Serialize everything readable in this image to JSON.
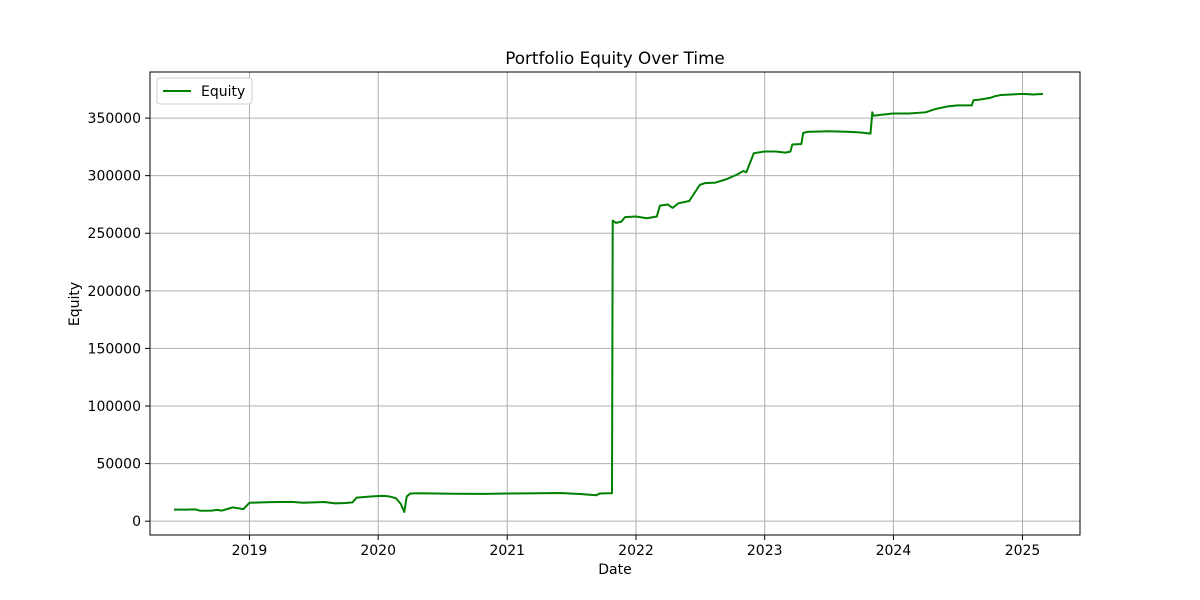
{
  "chart_data": {
    "type": "line",
    "title": "Portfolio Equity Over Time",
    "xlabel": "Date",
    "ylabel": "Equity",
    "xlim": [
      "2018-03-25",
      "2025-06-13"
    ],
    "ylim": [
      -12000,
      390000
    ],
    "xticks": [
      {
        "date": "2019-01-01",
        "label": "2019"
      },
      {
        "date": "2020-01-01",
        "label": "2020"
      },
      {
        "date": "2021-01-01",
        "label": "2021"
      },
      {
        "date": "2022-01-01",
        "label": "2022"
      },
      {
        "date": "2023-01-01",
        "label": "2023"
      },
      {
        "date": "2024-01-01",
        "label": "2024"
      },
      {
        "date": "2025-01-01",
        "label": "2025"
      }
    ],
    "yticks": [
      0,
      50000,
      100000,
      150000,
      200000,
      250000,
      300000,
      350000
    ],
    "grid": true,
    "legend": {
      "position": "top-left",
      "entries": [
        "Equity"
      ]
    },
    "series": [
      {
        "name": "Equity",
        "color": "#008000",
        "x": [
          "2018-06-01",
          "2018-07-01",
          "2018-08-01",
          "2018-08-15",
          "2018-09-15",
          "2018-10-01",
          "2018-10-15",
          "2018-11-15",
          "2018-12-15",
          "2019-01-01",
          "2019-03-01",
          "2019-05-01",
          "2019-06-01",
          "2019-08-01",
          "2019-09-01",
          "2019-10-01",
          "2019-10-20",
          "2019-11-01",
          "2019-11-15",
          "2019-12-15",
          "2020-01-15",
          "2020-02-01",
          "2020-02-20",
          "2020-03-05",
          "2020-03-15",
          "2020-03-22",
          "2020-04-01",
          "2020-05-01",
          "2020-08-01",
          "2020-11-01",
          "2021-01-01",
          "2021-04-01",
          "2021-06-01",
          "2021-08-01",
          "2021-09-10",
          "2021-09-20",
          "2021-10-15",
          "2021-10-25",
          "2021-10-27",
          "2021-11-05",
          "2021-11-20",
          "2021-12-01",
          "2022-01-01",
          "2022-02-01",
          "2022-03-01",
          "2022-03-10",
          "2022-04-01",
          "2022-04-15",
          "2022-05-01",
          "2022-06-01",
          "2022-07-01",
          "2022-07-15",
          "2022-08-15",
          "2022-09-15",
          "2022-10-15",
          "2022-11-01",
          "2022-11-10",
          "2022-12-01",
          "2023-01-01",
          "2023-02-01",
          "2023-03-01",
          "2023-03-15",
          "2023-03-20",
          "2023-04-15",
          "2023-04-20",
          "2023-05-01",
          "2023-07-01",
          "2023-09-01",
          "2023-10-01",
          "2023-10-28",
          "2023-11-02",
          "2023-11-05",
          "2023-12-01",
          "2024-01-01",
          "2024-02-15",
          "2024-04-01",
          "2024-05-01",
          "2024-06-01",
          "2024-07-01",
          "2024-08-10",
          "2024-08-15",
          "2024-09-01",
          "2024-10-01",
          "2024-10-15",
          "2024-11-01",
          "2024-12-01",
          "2025-01-01",
          "2025-02-01",
          "2025-02-28"
        ],
        "values": [
          10000,
          10000,
          10200,
          9000,
          9200,
          9800,
          9200,
          12000,
          10500,
          16000,
          16500,
          16800,
          16000,
          16700,
          15500,
          15800,
          16300,
          20500,
          20800,
          21500,
          22000,
          21500,
          20000,
          15000,
          8000,
          21500,
          24000,
          24200,
          23800,
          23700,
          24000,
          24200,
          24500,
          23500,
          22500,
          24000,
          24300,
          24300,
          261000,
          259000,
          260000,
          264000,
          264500,
          263000,
          264500,
          274000,
          275000,
          272000,
          276000,
          278000,
          292000,
          293500,
          294000,
          297000,
          301000,
          304000,
          303000,
          319500,
          321000,
          321000,
          320000,
          321000,
          327000,
          327500,
          337000,
          338000,
          338500,
          338000,
          337500,
          336500,
          355000,
          352000,
          353000,
          354000,
          354000,
          355000,
          358000,
          360000,
          361000,
          361000,
          365500,
          366000,
          367500,
          369000,
          370000,
          370500,
          371000,
          370500,
          371000
        ]
      }
    ]
  }
}
